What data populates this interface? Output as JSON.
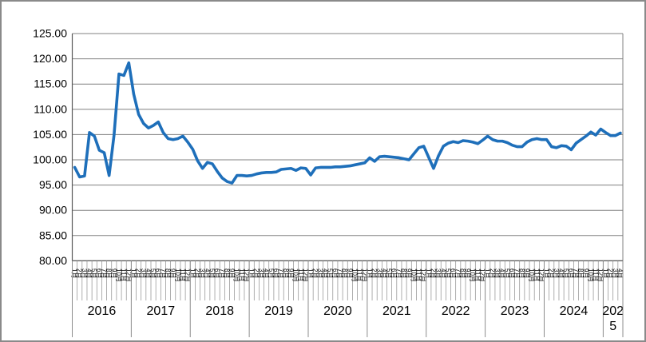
{
  "figure": {
    "background": "#ffffff",
    "border_color": "#8a8a8a"
  },
  "chart_data": {
    "type": "line",
    "title": "",
    "legend": "none",
    "grid": "horizontal",
    "gridline_color": "#808080",
    "axis_line_color": "#595959",
    "plot_border_color": "#808080",
    "tick_color": "#8c8c8c",
    "text_color": "#000000",
    "y_axis": {
      "min": 80,
      "max": 125,
      "step": 5,
      "tick_labels": [
        "125.00",
        "120.00",
        "115.00",
        "110.00",
        "105.00",
        "100.00",
        "95.00",
        "90.00",
        "85.00",
        "80.00"
      ]
    },
    "x_axis": {
      "month_labels": [
        "1月",
        "2月",
        "3月",
        "4月",
        "5月",
        "6月",
        "7月",
        "8月",
        "9月",
        "10月",
        "11月",
        "12月"
      ],
      "years": [
        {
          "label": "2016",
          "month_count": 12
        },
        {
          "label": "2017",
          "month_count": 12
        },
        {
          "label": "2018",
          "month_count": 12
        },
        {
          "label": "2019",
          "month_count": 12
        },
        {
          "label": "2020",
          "month_count": 12
        },
        {
          "label": "2021",
          "month_count": 12
        },
        {
          "label": "2022",
          "month_count": 12
        },
        {
          "label": "2023",
          "month_count": 12
        },
        {
          "label": "2024",
          "month_count": 12
        },
        {
          "label": "2025",
          "month_count": 4
        }
      ]
    },
    "series": [
      {
        "name": "",
        "color": "#1e6fba",
        "stroke_width": 3.6,
        "values": [
          98.5,
          96.6,
          96.8,
          105.4,
          104.7,
          101.9,
          101.4,
          96.9,
          104.9,
          117.0,
          116.7,
          119.2,
          113.0,
          109.0,
          107.2,
          106.3,
          106.8,
          107.5,
          105.4,
          104.2,
          104.0,
          104.2,
          104.7,
          103.5,
          102.1,
          99.8,
          98.3,
          99.5,
          99.2,
          97.7,
          96.4,
          95.7,
          95.4,
          96.9,
          96.9,
          96.8,
          96.9,
          97.2,
          97.4,
          97.5,
          97.5,
          97.6,
          98.1,
          98.2,
          98.3,
          97.9,
          98.4,
          98.3,
          97.0,
          98.4,
          98.5,
          98.5,
          98.5,
          98.6,
          98.6,
          98.7,
          98.8,
          99.0,
          99.2,
          99.4,
          100.4,
          99.7,
          100.6,
          100.7,
          100.6,
          100.5,
          100.4,
          100.2,
          100.0,
          101.2,
          102.4,
          102.7,
          100.5,
          98.3,
          100.8,
          102.7,
          103.3,
          103.6,
          103.4,
          103.8,
          103.7,
          103.5,
          103.2,
          103.9,
          104.7,
          104.0,
          103.7,
          103.7,
          103.4,
          102.9,
          102.6,
          102.6,
          103.5,
          104.0,
          104.2,
          104.0,
          104.0,
          102.6,
          102.4,
          102.8,
          102.7,
          102.0,
          103.3,
          104.0,
          104.7,
          105.5,
          104.9,
          106.1,
          105.4,
          104.8,
          104.8,
          105.3
        ]
      }
    ]
  }
}
